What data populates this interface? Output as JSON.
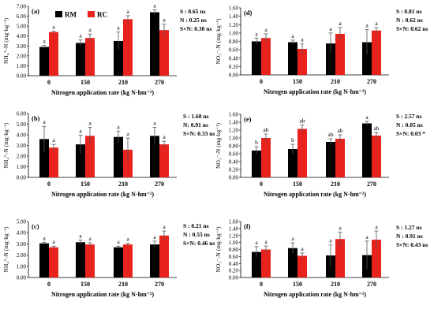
{
  "figure": {
    "legend": [
      {
        "name": "RM",
        "color": "#000000"
      },
      {
        "name": "RC",
        "color": "#e8221c"
      }
    ]
  },
  "chart_data": [
    {
      "type": "bar",
      "panel": "(a)",
      "ylabel": "NH₄⁺-N  (mg·kg⁻¹)",
      "xlabel": "Nitrogen application rate  (kg N·hm⁻²)",
      "categories": [
        "0",
        "150",
        "210",
        "270"
      ],
      "ylim": [
        0,
        7
      ],
      "yticks": [
        "0.00",
        "1.00",
        "2.00",
        "3.00",
        "4.00",
        "5.00",
        "6.00",
        "7.00"
      ],
      "series": [
        {
          "name": "RM",
          "values": [
            2.9,
            3.3,
            3.5,
            6.4
          ],
          "errors": [
            0.15,
            0.3,
            0.9,
            0.25
          ],
          "letters": [
            "a",
            "a",
            "a",
            "a"
          ]
        },
        {
          "name": "RC",
          "values": [
            4.4,
            3.8,
            5.7,
            4.6
          ],
          "errors": [
            0.1,
            0.4,
            0.35,
            0.6
          ],
          "letters": [
            "a",
            "a",
            "a",
            "a"
          ]
        }
      ],
      "stats": [
        "S : 0.65 ns",
        "N : 0.25 ns",
        "S×N: 0.30 ns"
      ]
    },
    {
      "type": "bar",
      "panel": "(b)",
      "ylabel": "NH₄⁺-N  (mg·kg⁻¹)",
      "xlabel": "Nitrogen application rate  (kg N·hm⁻²)",
      "categories": [
        "0",
        "150",
        "210",
        "270"
      ],
      "ylim": [
        0,
        6
      ],
      "yticks": [
        "0.00",
        "1.00",
        "2.00",
        "3.00",
        "4.00",
        "5.00",
        "6.00"
      ],
      "series": [
        {
          "name": "RM",
          "values": [
            3.6,
            3.1,
            3.8,
            3.9
          ],
          "errors": [
            1.2,
            0.85,
            0.55,
            0.8
          ],
          "letters": [
            "a",
            "a",
            "a",
            "a"
          ]
        },
        {
          "name": "RC",
          "values": [
            2.8,
            3.9,
            2.6,
            3.1
          ],
          "errors": [
            0.3,
            0.8,
            1.1,
            0.3
          ],
          "letters": [
            "a",
            "a",
            "a",
            "a"
          ]
        }
      ],
      "stats": [
        "S : 1.68 ns",
        "N: 0.91 ns",
        "S×N:  0.33 ns"
      ]
    },
    {
      "type": "bar",
      "panel": "(c)",
      "ylabel": "NH₄⁺-N  (mg·kg⁻¹)",
      "xlabel": "Nitrogen application rate  (kg N·hm⁻²)",
      "categories": [
        "0",
        "150",
        "210",
        "270"
      ],
      "ylim": [
        0,
        5
      ],
      "yticks": [
        "0.00",
        "1.00",
        "2.00",
        "3.00",
        "4.00",
        "5.00"
      ],
      "series": [
        {
          "name": "RM",
          "values": [
            3.05,
            3.15,
            2.7,
            2.95
          ],
          "errors": [
            0.1,
            0.2,
            0.1,
            0.3
          ],
          "letters": [
            "a",
            "a",
            "a",
            "a"
          ]
        },
        {
          "name": "RC",
          "values": [
            2.7,
            2.95,
            2.95,
            3.75
          ],
          "errors": [
            0.1,
            0.15,
            0.1,
            0.4
          ],
          "letters": [
            "a",
            "a",
            "a",
            "a"
          ]
        }
      ],
      "stats": [
        "S : 0.21 ns",
        "N : 0.55 ns",
        "S×N: 0.46 ns"
      ]
    },
    {
      "type": "bar",
      "panel": "(d)",
      "ylabel": "NO₃⁻-N  (mg·kg⁻¹)",
      "xlabel": "Nitrogen application rate  (kg N·hm⁻²)",
      "categories": [
        "0",
        "150",
        "210",
        "270"
      ],
      "ylim": [
        0,
        1.6
      ],
      "yticks": [
        "0.00",
        "0.20",
        "0.40",
        "0.60",
        "0.80",
        "1.00",
        "1.20",
        "1.40",
        "1.60"
      ],
      "series": [
        {
          "name": "RM",
          "values": [
            0.8,
            0.78,
            0.75,
            0.78
          ],
          "errors": [
            0.08,
            0.05,
            0.25,
            0.3
          ],
          "letters": [
            "a",
            "a",
            "a",
            "a"
          ]
        },
        {
          "name": "RC",
          "values": [
            0.88,
            0.62,
            0.98,
            1.06
          ],
          "errors": [
            0.1,
            0.12,
            0.15,
            0.07
          ],
          "letters": [
            "a",
            "a",
            "a",
            "a"
          ]
        }
      ],
      "stats": [
        "S : 0.81 ns",
        "N : 0.62 ns",
        "S×N:  0.62 ns"
      ]
    },
    {
      "type": "bar",
      "panel": "(e)",
      "ylabel": "NO₃⁻-N  (mg·kg⁻¹)",
      "xlabel": "Nitrogen application rate  (kg N·hm⁻²)",
      "categories": [
        "0",
        "150",
        "210",
        "270"
      ],
      "ylim": [
        0,
        1.6
      ],
      "yticks": [
        "0.00",
        "0.20",
        "0.40",
        "0.60",
        "0.80",
        "1.00",
        "1.20",
        "1.40",
        "1.60"
      ],
      "series": [
        {
          "name": "RM",
          "values": [
            0.68,
            0.72,
            0.9,
            1.37
          ],
          "errors": [
            0.1,
            0.12,
            0.08,
            0.05
          ],
          "letters": [
            "b",
            "b",
            "ab",
            "a"
          ]
        },
        {
          "name": "RC",
          "values": [
            1.0,
            1.23,
            0.98,
            1.06
          ],
          "errors": [
            0.1,
            0.1,
            0.1,
            0.08
          ],
          "letters": [
            "ab",
            "ab",
            "ab",
            "ab"
          ]
        }
      ],
      "stats": [
        "S : 2.57 ns",
        "N : 0.05 ns",
        "S×N:  0.03 *"
      ]
    },
    {
      "type": "bar",
      "panel": "(f)",
      "ylabel": "NO₃⁻-N  (mg·kg⁻¹)",
      "xlabel": "Nitrogen application rate  (kg N·hm⁻²)",
      "categories": [
        "0",
        "150",
        "210",
        "270"
      ],
      "ylim": [
        0,
        1.6
      ],
      "yticks": [
        "0.00",
        "0.20",
        "0.40",
        "0.60",
        "0.80",
        "1.00",
        "1.20",
        "1.40",
        "1.60"
      ],
      "series": [
        {
          "name": "RM",
          "values": [
            0.73,
            0.84,
            0.63,
            0.64
          ],
          "errors": [
            0.15,
            0.15,
            0.3,
            0.4
          ],
          "letters": [
            "a",
            "a",
            "a",
            "a"
          ]
        },
        {
          "name": "RC",
          "values": [
            0.8,
            0.62,
            1.1,
            1.08
          ],
          "errors": [
            0.1,
            0.08,
            0.2,
            0.25
          ],
          "letters": [
            "a",
            "a",
            "a",
            "a"
          ]
        }
      ],
      "stats": [
        "S : 1.27 ns",
        "N : 0.91 ns",
        "S×N:  0.43 ns"
      ]
    }
  ]
}
